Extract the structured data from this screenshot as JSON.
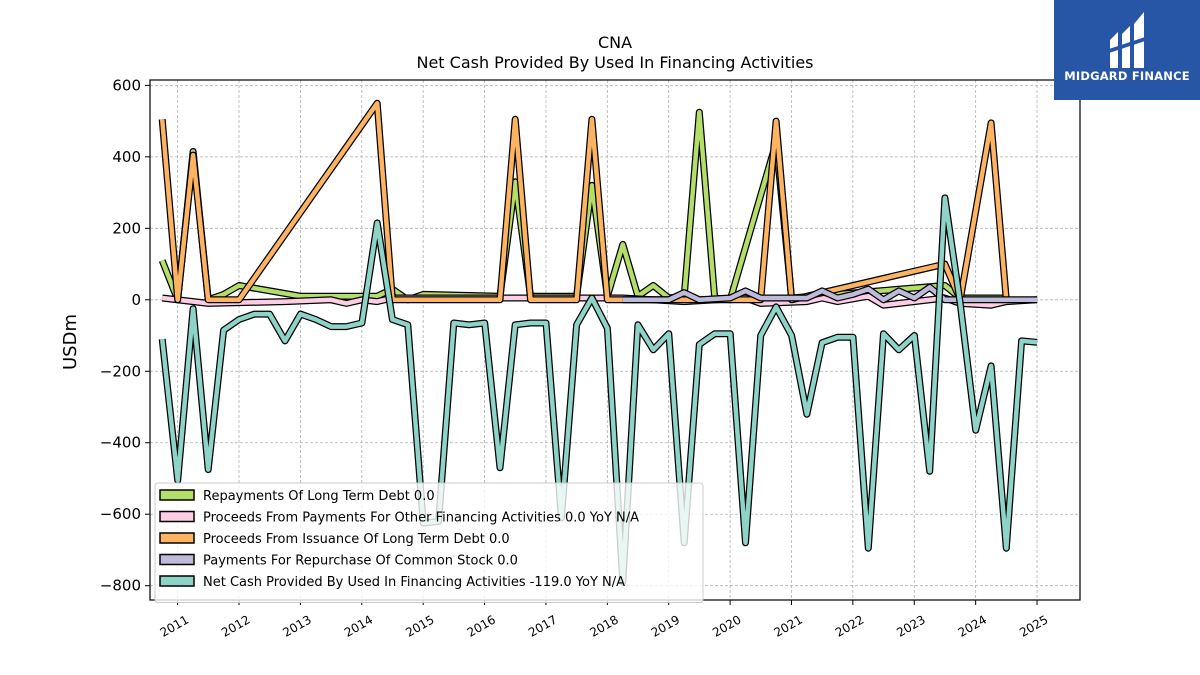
{
  "chart_data": {
    "type": "line",
    "title": "CNA",
    "subtitle": "Net Cash Provided By Used In Financing Activities",
    "ylabel": "USDm",
    "xlabel": "",
    "ylim": [
      -840,
      615
    ],
    "xlim": [
      2010.55,
      2025.7
    ],
    "yticks": [
      -800,
      -600,
      -400,
      -200,
      0,
      200,
      400,
      600
    ],
    "xticks": [
      "2011",
      "2012",
      "2013",
      "2014",
      "2015",
      "2016",
      "2017",
      "2018",
      "2019",
      "2020",
      "2021",
      "2022",
      "2023",
      "2024",
      "2025"
    ],
    "grid": true,
    "legend_position": "lower-left",
    "series": [
      {
        "name": "Repayments Of Long Term Debt",
        "legend": "Repayments Of Long Term Debt  0.0",
        "color": "#b3de69",
        "points": [
          [
            "2010-09-30",
            110
          ],
          [
            "2010-12-31",
            0
          ],
          [
            "2011-03-31",
            415
          ],
          [
            "2011-06-30",
            0
          ],
          [
            "2011-09-30",
            15
          ],
          [
            "2011-12-31",
            40
          ],
          [
            "2012-12-31",
            10
          ],
          [
            "2014-03-31",
            10
          ],
          [
            "2014-06-30",
            30
          ],
          [
            "2014-09-30",
            0
          ],
          [
            "2014-12-31",
            15
          ],
          [
            "2016-03-31",
            10
          ],
          [
            "2016-06-30",
            330
          ],
          [
            "2016-09-30",
            10
          ],
          [
            "2017-06-30",
            10
          ],
          [
            "2017-09-30",
            320
          ],
          [
            "2017-12-31",
            10
          ],
          [
            "2018-03-31",
            155
          ],
          [
            "2018-06-30",
            10
          ],
          [
            "2018-09-30",
            40
          ],
          [
            "2018-12-31",
            5
          ],
          [
            "2019-03-31",
            10
          ],
          [
            "2019-06-30",
            525
          ],
          [
            "2019-09-30",
            5
          ],
          [
            "2019-12-31",
            0
          ],
          [
            "2020-09-30",
            440
          ],
          [
            "2020-12-31",
            5
          ],
          [
            "2023-06-30",
            40
          ],
          [
            "2023-09-30",
            5
          ],
          [
            "2024-03-31",
            5
          ],
          [
            "2024-06-30",
            5
          ]
        ]
      },
      {
        "name": "Proceeds From Payments For Other Financing Activities",
        "legend": "Proceeds From Payments For Other Financing Activities  0.0 YoY N/A",
        "color": "#fccde5",
        "points": [
          [
            "2010-09-30",
            5
          ],
          [
            "2011-06-30",
            -10
          ],
          [
            "2012-09-30",
            -5
          ],
          [
            "2013-06-30",
            0
          ],
          [
            "2013-09-30",
            -10
          ],
          [
            "2013-12-31",
            0
          ],
          [
            "2014-03-31",
            -5
          ],
          [
            "2014-06-30",
            5
          ],
          [
            "2016-06-30",
            5
          ],
          [
            "2018-03-31",
            5
          ],
          [
            "2019-03-31",
            -5
          ],
          [
            "2020-03-31",
            5
          ],
          [
            "2020-06-30",
            -10
          ],
          [
            "2021-03-31",
            -5
          ],
          [
            "2021-06-30",
            5
          ],
          [
            "2021-09-30",
            -5
          ],
          [
            "2022-03-31",
            10
          ],
          [
            "2022-06-30",
            -15
          ],
          [
            "2023-06-30",
            5
          ],
          [
            "2023-09-30",
            -10
          ],
          [
            "2024-03-31",
            -15
          ],
          [
            "2024-06-30",
            -5
          ],
          [
            "2024-12-31",
            0
          ]
        ]
      },
      {
        "name": "Proceeds From Issuance Of Long Term Debt",
        "legend": "Proceeds From Issuance Of Long Term Debt  0.0",
        "color": "#fdb462",
        "points": [
          [
            "2010-09-30",
            505
          ],
          [
            "2010-12-31",
            0
          ],
          [
            "2011-03-31",
            405
          ],
          [
            "2011-06-30",
            0
          ],
          [
            "2011-12-31",
            0
          ],
          [
            "2014-03-31",
            550
          ],
          [
            "2014-06-30",
            0
          ],
          [
            "2016-03-31",
            0
          ],
          [
            "2016-06-30",
            505
          ],
          [
            "2016-09-30",
            0
          ],
          [
            "2017-06-30",
            0
          ],
          [
            "2017-09-30",
            505
          ],
          [
            "2017-12-31",
            0
          ],
          [
            "2020-06-30",
            0
          ],
          [
            "2020-09-30",
            500
          ],
          [
            "2020-12-31",
            0
          ],
          [
            "2023-06-30",
            100
          ],
          [
            "2023-09-30",
            0
          ],
          [
            "2024-03-31",
            495
          ],
          [
            "2024-06-30",
            0
          ]
        ]
      },
      {
        "name": "Payments For Repurchase Of Common Stock",
        "legend": "Payments For Repurchase Of Common Stock  0.0",
        "color": "#bebada",
        "points": [
          [
            "2018-03-31",
            0
          ],
          [
            "2018-09-30",
            0
          ],
          [
            "2018-12-31",
            0
          ],
          [
            "2019-03-31",
            20
          ],
          [
            "2019-06-30",
            0
          ],
          [
            "2019-12-31",
            5
          ],
          [
            "2020-03-31",
            25
          ],
          [
            "2020-06-30",
            5
          ],
          [
            "2021-03-31",
            5
          ],
          [
            "2021-06-30",
            25
          ],
          [
            "2021-09-30",
            5
          ],
          [
            "2021-12-31",
            15
          ],
          [
            "2022-03-31",
            30
          ],
          [
            "2022-06-30",
            0
          ],
          [
            "2022-09-30",
            25
          ],
          [
            "2022-12-31",
            5
          ],
          [
            "2023-03-31",
            35
          ],
          [
            "2023-06-30",
            0
          ],
          [
            "2024-12-31",
            0
          ]
        ]
      },
      {
        "name": "Net Cash Provided By Used In Financing Activities",
        "legend": "Net Cash Provided By Used In Financing Activities  -119.0 YoY N/A",
        "color": "#8dd3c7",
        "points": [
          [
            "2010-09-30",
            -110
          ],
          [
            "2010-12-31",
            -505
          ],
          [
            "2011-03-31",
            -25
          ],
          [
            "2011-06-30",
            -475
          ],
          [
            "2011-09-30",
            -85
          ],
          [
            "2011-12-31",
            -55
          ],
          [
            "2012-03-31",
            -40
          ],
          [
            "2012-06-30",
            -40
          ],
          [
            "2012-09-30",
            -115
          ],
          [
            "2012-12-31",
            -40
          ],
          [
            "2013-03-31",
            -55
          ],
          [
            "2013-06-30",
            -75
          ],
          [
            "2013-09-30",
            -75
          ],
          [
            "2013-12-31",
            -65
          ],
          [
            "2014-03-31",
            215
          ],
          [
            "2014-06-30",
            -55
          ],
          [
            "2014-09-30",
            -70
          ],
          [
            "2014-12-31",
            -625
          ],
          [
            "2015-03-31",
            -620
          ],
          [
            "2015-06-30",
            -65
          ],
          [
            "2015-09-30",
            -70
          ],
          [
            "2015-12-31",
            -65
          ],
          [
            "2016-03-31",
            -470
          ],
          [
            "2016-06-30",
            -70
          ],
          [
            "2016-09-30",
            -65
          ],
          [
            "2016-12-31",
            -65
          ],
          [
            "2017-03-31",
            -610
          ],
          [
            "2017-06-30",
            -70
          ],
          [
            "2017-09-30",
            5
          ],
          [
            "2017-12-31",
            -80
          ],
          [
            "2018-03-31",
            -790
          ],
          [
            "2018-06-30",
            -70
          ],
          [
            "2018-09-30",
            -140
          ],
          [
            "2018-12-31",
            -95
          ],
          [
            "2019-03-31",
            -680
          ],
          [
            "2019-06-30",
            -125
          ],
          [
            "2019-09-30",
            -95
          ],
          [
            "2019-12-31",
            -95
          ],
          [
            "2020-03-31",
            -680
          ],
          [
            "2020-06-30",
            -100
          ],
          [
            "2020-09-30",
            -20
          ],
          [
            "2020-12-31",
            -100
          ],
          [
            "2021-03-31",
            -320
          ],
          [
            "2021-06-30",
            -120
          ],
          [
            "2021-09-30",
            -105
          ],
          [
            "2021-12-31",
            -105
          ],
          [
            "2022-03-31",
            -695
          ],
          [
            "2022-06-30",
            -95
          ],
          [
            "2022-09-30",
            -140
          ],
          [
            "2022-12-31",
            -100
          ],
          [
            "2023-03-31",
            -480
          ],
          [
            "2023-06-30",
            285
          ],
          [
            "2023-09-30",
            -10
          ],
          [
            "2023-12-31",
            -365
          ],
          [
            "2024-03-31",
            -185
          ],
          [
            "2024-06-30",
            -695
          ],
          [
            "2024-09-30",
            -115
          ],
          [
            "2024-12-31",
            -119
          ]
        ]
      }
    ]
  },
  "logo": {
    "text": "MIDGARD FINANCE",
    "background": "#2756a6"
  }
}
